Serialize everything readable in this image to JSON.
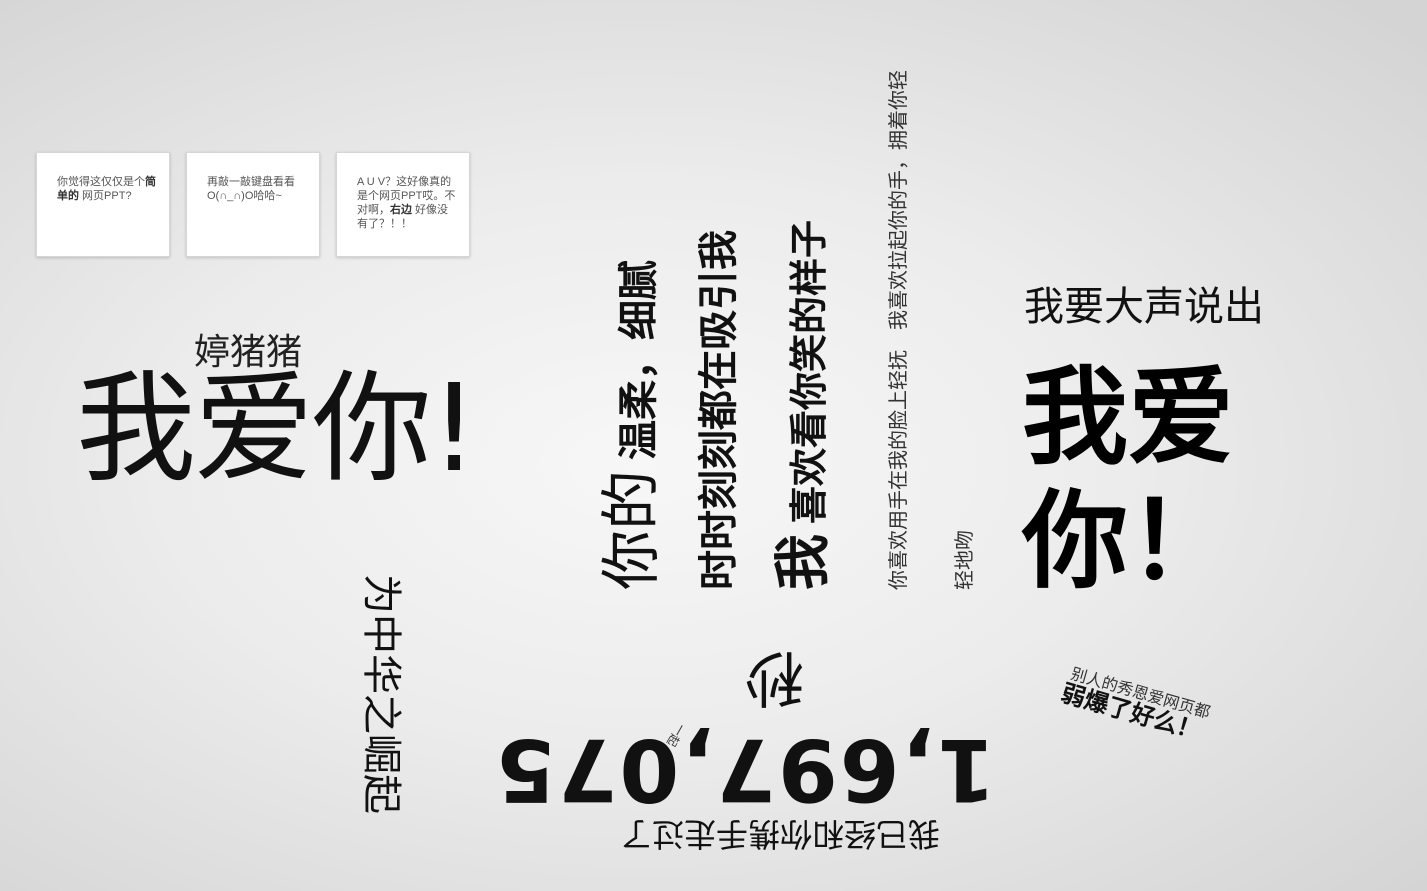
{
  "cards": [
    {
      "pre": "你觉得这仅仅是个",
      "bold": "简单的",
      "post": " 网页PPT?"
    },
    {
      "text": "再敲一敲键盘看看O(∩_∩)O哈哈~"
    },
    {
      "line1": "A U V？这好像真的是个网页PPT哎。不对啊，",
      "bold": "右边",
      "line2": " 好像没有了？！！"
    }
  ],
  "left": {
    "name": "婷猪猪",
    "love": "我爱你!"
  },
  "rise": "为中华之崛起",
  "columns": {
    "c1_big": "你的",
    "c1_small": "温柔，细腻",
    "c2": "时时刻刻都在吸引我",
    "c3_big": "我",
    "c3_small": "喜欢看你笑的样子",
    "c4": "你喜欢用手在我的脸上轻抚　我喜欢拉起你的手，拥着你轻",
    "c5": "轻地吻"
  },
  "bottom": {
    "seconds": "秒",
    "count": "1,697,075",
    "small": "一起",
    "walked": "我已经和你携手走过了"
  },
  "right": {
    "shout": "我要大声说出",
    "love": "我爱你！",
    "others": "别人的秀恩爱网页都",
    "weak": "弱爆了好么！"
  }
}
